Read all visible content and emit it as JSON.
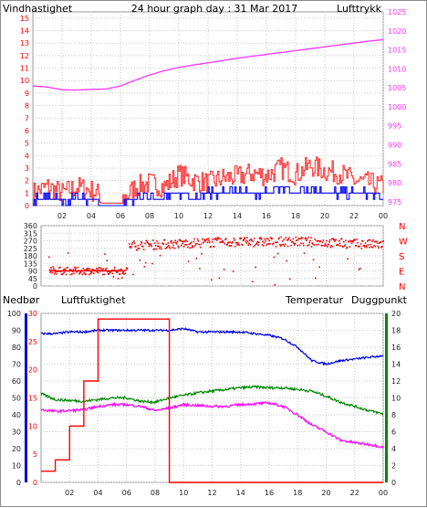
{
  "colors": {
    "wind": "#ff2020",
    "wind_dark": "#ee0000",
    "gust": "#ff3333",
    "mean": "#0000ff",
    "pressure": "#ff33ff",
    "direction": "#ee0000",
    "precip": "#ff0000",
    "humidity": "#0000dd",
    "temperature": "#008800",
    "dewpoint": "#ff00ff",
    "title": "#ffd700",
    "axis_red": "#ff0000",
    "axis_blue": "#0000cc",
    "axis_green": "#008800",
    "axis_magenta": "#cc00cc",
    "grid": "#c8c8c8",
    "axis_text": "#222222"
  },
  "chart_data": [
    {
      "type": "line",
      "title": "24 hour graph day : 31 Mar 2017",
      "left_label": "Vindhastighet",
      "right_label": "Lufttrykk",
      "x_ticks": [
        "02",
        "04",
        "06",
        "08",
        "10",
        "12",
        "14",
        "16",
        "18",
        "20",
        "22",
        "00"
      ],
      "y_left_ticks": [
        "0",
        "1",
        "2",
        "3",
        "4",
        "5",
        "6",
        "7",
        "8",
        "9",
        "10",
        "11",
        "12",
        "13",
        "14",
        "15"
      ],
      "y_right_ticks": [
        "975",
        "980",
        "985",
        "990",
        "995",
        "1000",
        "1005",
        "1010",
        "1015",
        "1020",
        "1025"
      ],
      "ylim_left": [
        0,
        15.5
      ],
      "ylim_right": [
        974,
        1025
      ],
      "x": [
        0,
        1,
        2,
        3,
        4,
        5,
        6,
        7,
        8,
        9,
        10,
        11,
        12,
        13,
        14,
        15,
        16,
        17,
        18,
        19,
        20,
        21,
        22,
        23,
        24
      ],
      "series": [
        {
          "name": "",
          "key": "pressure",
          "axis": "right",
          "values": [
            1005.5,
            1005.2,
            1004.5,
            1004.4,
            1004.6,
            1004.7,
            1005.5,
            1007.0,
            1008.4,
            1009.5,
            1010.4,
            1011.0,
            1011.6,
            1012.2,
            1012.8,
            1013.3,
            1013.8,
            1014.3,
            1014.8,
            1015.3,
            1015.8,
            1016.3,
            1016.8,
            1017.3,
            1017.7
          ]
        },
        {
          "name": "",
          "key": "wind_gust",
          "axis": "left",
          "values": [
            1,
            1.5,
            1,
            1.5,
            1.2,
            0.6,
            0.3,
            1.5,
            1.8,
            1.5,
            2.5,
            2.0,
            1.8,
            2.2,
            2.3,
            2.6,
            2.4,
            3.0,
            2.5,
            3.2,
            2.8,
            2.6,
            2.0,
            1.8,
            1.5
          ]
        },
        {
          "name": "",
          "key": "wind_mean",
          "axis": "left",
          "values": [
            0.4,
            0.7,
            0.4,
            0.7,
            0.4,
            0.1,
            0.1,
            0.5,
            0.8,
            0.6,
            1.0,
            0.8,
            1.0,
            1.0,
            1.0,
            1.0,
            1.0,
            1.5,
            1.0,
            1.5,
            1.0,
            1.0,
            1.0,
            1.0,
            0.5
          ]
        }
      ]
    },
    {
      "type": "scatter",
      "title": "",
      "y_ticks": [
        "360",
        "315",
        "270",
        "225",
        "180",
        "135",
        "90",
        "45",
        "0"
      ],
      "y_right_labels": [
        "N",
        "W",
        "S",
        "E",
        "N"
      ],
      "ylim": [
        0,
        360
      ],
      "x_span": [
        0,
        24
      ],
      "direction_profile": [
        {
          "x": 0.5,
          "y": 90
        },
        {
          "x": 6.0,
          "y": 90
        },
        {
          "x": 6.1,
          "y": 240
        },
        {
          "x": 12,
          "y": 260
        },
        {
          "x": 18,
          "y": 265
        },
        {
          "x": 24,
          "y": 245
        }
      ],
      "precip_marker": {
        "x_from": 0.6,
        "x_to": 5.8,
        "y": 90
      }
    },
    {
      "type": "line",
      "title": "",
      "labels": {
        "precip": "Nedbør",
        "humidity": "Luftfuktighet",
        "temperature": "Temperatur",
        "dewpoint": "Duggpunkt"
      },
      "x_ticks": [
        "02",
        "04",
        "06",
        "08",
        "10",
        "12",
        "14",
        "16",
        "18",
        "20",
        "22",
        "00"
      ],
      "y_precip_ticks": [
        "0",
        "10",
        "20",
        "30",
        "40",
        "50",
        "60",
        "70",
        "80",
        "90",
        "100"
      ],
      "y_humidity_ticks": [
        "0",
        "5",
        "10",
        "15",
        "20",
        "25",
        "30"
      ],
      "y_temp_ticks": [
        "0",
        "2",
        "4",
        "6",
        "8",
        "10",
        "12",
        "14",
        "16",
        "18",
        "20"
      ],
      "ylim_precip": [
        0,
        100
      ],
      "ylim_humidity": [
        0,
        30
      ],
      "ylim_temp": [
        0,
        20
      ],
      "x": [
        0,
        1,
        2,
        3,
        4,
        5,
        6,
        7,
        8,
        9,
        10,
        11,
        12,
        13,
        14,
        15,
        16,
        17,
        18,
        19,
        20,
        21,
        22,
        23,
        24
      ],
      "series": [
        {
          "name": "Luftfuktighet",
          "key": "humidity",
          "axis": "precip",
          "values": [
            88,
            88,
            89,
            89,
            90,
            90,
            90,
            90,
            90,
            90,
            91,
            89,
            89,
            89,
            89,
            88,
            87,
            85,
            80,
            72,
            70,
            72,
            73,
            74,
            75
          ]
        },
        {
          "name": "Temperatur",
          "key": "temperature",
          "axis": "temp",
          "values": [
            10.5,
            9.8,
            9.7,
            9.6,
            9.8,
            10.0,
            10.0,
            9.6,
            9.5,
            10.0,
            10.3,
            10.6,
            10.8,
            11.0,
            11.2,
            11.3,
            11.2,
            11.2,
            11.0,
            10.8,
            10.2,
            9.5,
            9.0,
            8.5,
            8.1
          ]
        },
        {
          "name": "Duggpunkt",
          "key": "dewpoint",
          "axis": "temp",
          "values": [
            8.6,
            8.4,
            8.5,
            8.6,
            9.0,
            9.2,
            9.2,
            9.0,
            8.5,
            8.8,
            9.2,
            9.1,
            9.0,
            9.0,
            9.2,
            9.3,
            9.4,
            9.0,
            8.0,
            6.8,
            6.0,
            5.0,
            4.7,
            4.5,
            4.2
          ]
        },
        {
          "name": "Nedbør",
          "key": "precip",
          "axis": "precip",
          "values": [
            2,
            4,
            10,
            18,
            29,
            29,
            29,
            29,
            29,
            0,
            0,
            0,
            0,
            0,
            0,
            0,
            0,
            0,
            0,
            0,
            0,
            0,
            0,
            0,
            0
          ]
        }
      ]
    }
  ]
}
